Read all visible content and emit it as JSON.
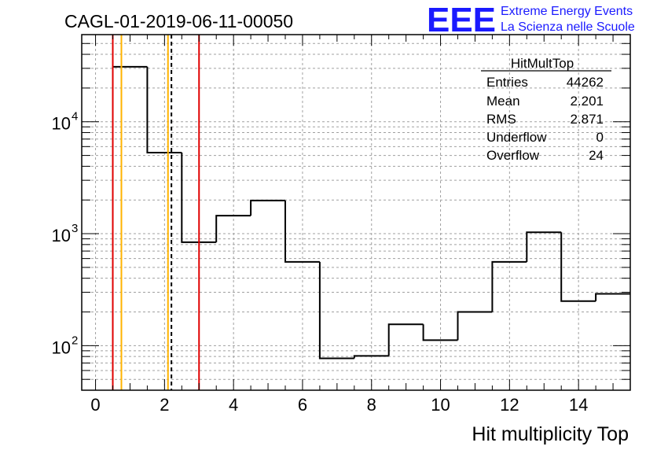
{
  "header": {
    "run_title": "CAGL-01-2019-06-11-00050",
    "logo_text": "EEE",
    "logo_line1": "Extreme Energy Events",
    "logo_line2": "La Scienza nelle Scuole",
    "logo_color": "#1a1aff"
  },
  "stats_box": {
    "title": "HitMultTop",
    "rows": [
      {
        "label": "Entries",
        "value": "44262"
      },
      {
        "label": "Mean",
        "value": "2.201"
      },
      {
        "label": "RMS",
        "value": "2.871"
      },
      {
        "label": "Underflow",
        "value": "0"
      },
      {
        "label": "Overflow",
        "value": "24"
      }
    ]
  },
  "chart_data": {
    "type": "histogram",
    "title": "",
    "xlabel": "Hit multiplicity Top",
    "ylabel": "",
    "xlim": [
      -0.4,
      15.5
    ],
    "ylim": [
      40,
      60000
    ],
    "y_scale": "log",
    "grid": true,
    "x_ticks": [
      0,
      2,
      4,
      6,
      8,
      10,
      12,
      14
    ],
    "y_ticks": [
      {
        "value": 100,
        "base": "10",
        "exp": "2"
      },
      {
        "value": 1000,
        "base": "10",
        "exp": "3"
      },
      {
        "value": 10000,
        "base": "10",
        "exp": "4"
      }
    ],
    "bins": [
      {
        "x0": 0.5,
        "x1": 1.5,
        "value": 31000
      },
      {
        "x0": 1.5,
        "x1": 2.5,
        "value": 5300
      },
      {
        "x0": 2.5,
        "x1": 3.5,
        "value": 840
      },
      {
        "x0": 3.5,
        "x1": 4.5,
        "value": 1450
      },
      {
        "x0": 4.5,
        "x1": 5.5,
        "value": 1980
      },
      {
        "x0": 5.5,
        "x1": 6.5,
        "value": 560
      },
      {
        "x0": 6.5,
        "x1": 7.5,
        "value": 77
      },
      {
        "x0": 7.5,
        "x1": 8.5,
        "value": 81
      },
      {
        "x0": 8.5,
        "x1": 9.5,
        "value": 155
      },
      {
        "x0": 9.5,
        "x1": 10.5,
        "value": 112
      },
      {
        "x0": 10.5,
        "x1": 11.5,
        "value": 200
      },
      {
        "x0": 11.5,
        "x1": 12.5,
        "value": 560
      },
      {
        "x0": 12.5,
        "x1": 13.5,
        "value": 1030
      },
      {
        "x0": 13.5,
        "x1": 14.5,
        "value": 250
      },
      {
        "x0": 14.5,
        "x1": 15.5,
        "value": 290
      }
    ],
    "vertical_lines": [
      {
        "x": 0.5,
        "color": "#e00000",
        "style": "solid"
      },
      {
        "x": 0.75,
        "color": "#ffb300",
        "style": "solid"
      },
      {
        "x": 2.1,
        "color": "#ffb300",
        "style": "solid"
      },
      {
        "x": 2.2,
        "color": "#000000",
        "style": "dashed"
      },
      {
        "x": 3.0,
        "color": "#e00000",
        "style": "solid"
      }
    ]
  }
}
